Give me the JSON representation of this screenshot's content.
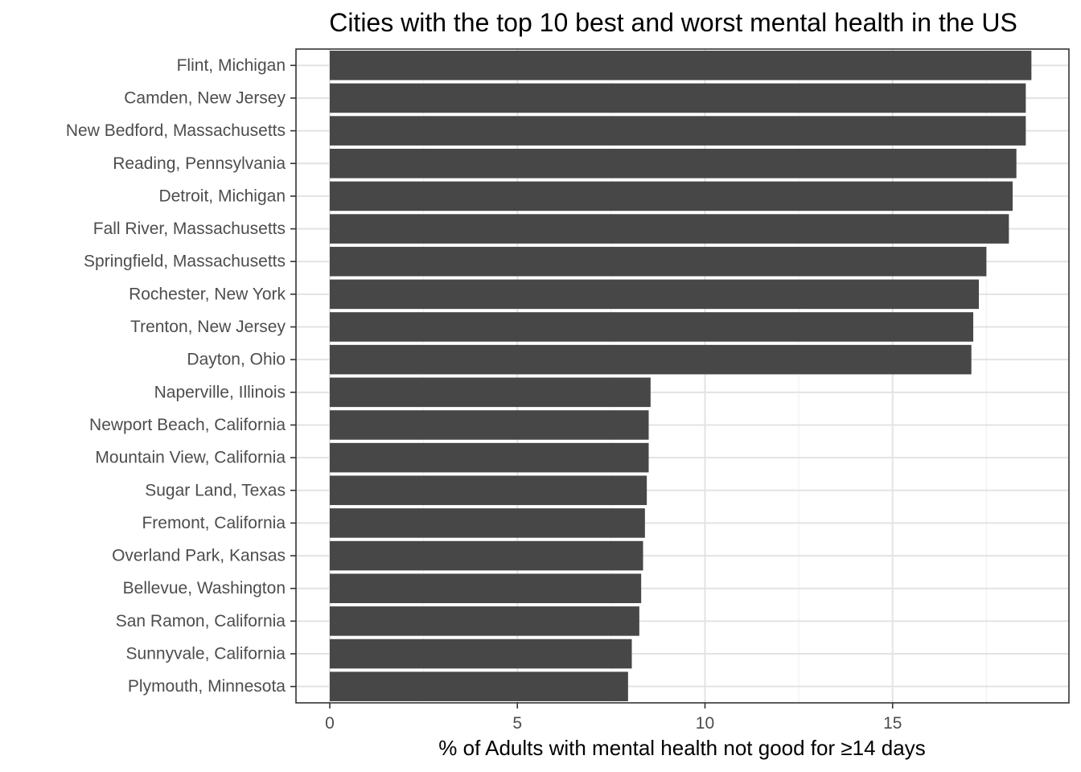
{
  "chart_data": {
    "type": "bar",
    "orientation": "horizontal",
    "title": "Cities with the top 10 best and worst mental health in the US",
    "xlabel": "% of Adults with mental health not good for ≥14 days",
    "ylabel": "",
    "xlim": [
      -0.9,
      19.7
    ],
    "xticks": [
      0,
      5,
      10,
      15
    ],
    "xtick_labels": [
      "0",
      "5",
      "10",
      "15"
    ],
    "grid": true,
    "bar_color": "#474747",
    "categories": [
      "Flint, Michigan",
      "Camden, New Jersey",
      "New Bedford, Massachusetts",
      "Reading, Pennsylvania",
      "Detroit, Michigan",
      "Fall River, Massachusetts",
      "Springfield, Massachusetts",
      "Rochester, New York",
      "Trenton, New Jersey",
      "Dayton, Ohio",
      "Naperville, Illinois",
      "Newport Beach, California",
      "Mountain View, California",
      "Sugar Land, Texas",
      "Fremont, California",
      "Overland Park, Kansas",
      "Bellevue, Washington",
      "San Ramon, California",
      "Sunnyvale, California",
      "Plymouth, Minnesota"
    ],
    "values": [
      18.7,
      18.55,
      18.55,
      18.3,
      18.2,
      18.1,
      17.5,
      17.3,
      17.15,
      17.1,
      8.55,
      8.5,
      8.5,
      8.45,
      8.4,
      8.35,
      8.3,
      8.25,
      8.05,
      7.95
    ]
  }
}
